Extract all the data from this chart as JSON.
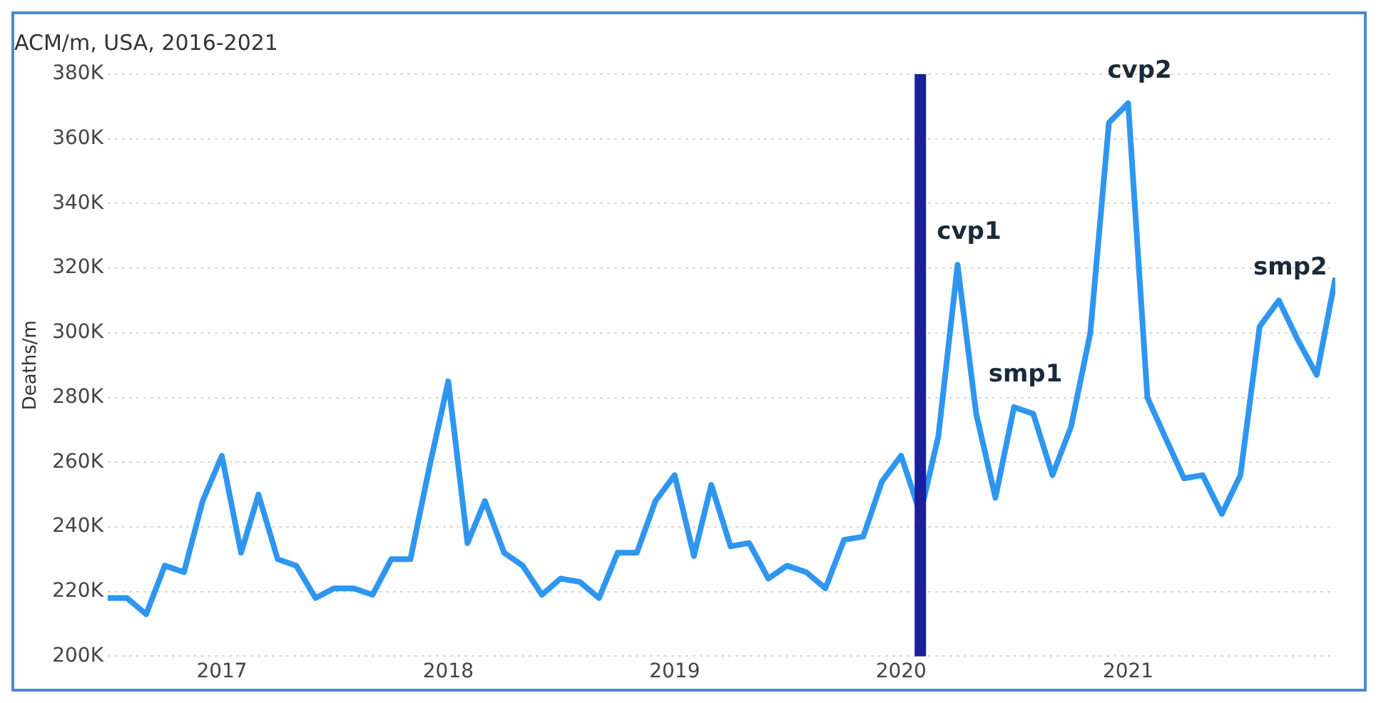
{
  "chart_data": {
    "type": "line",
    "title": "ACM/m, USA, 2016-2021",
    "ylabel": "Deaths/m",
    "x": [
      "2016-07",
      "2016-08",
      "2016-09",
      "2016-10",
      "2016-11",
      "2016-12",
      "2017-01",
      "2017-02",
      "2017-03",
      "2017-04",
      "2017-05",
      "2017-06",
      "2017-07",
      "2017-08",
      "2017-09",
      "2017-10",
      "2017-11",
      "2017-12",
      "2018-01",
      "2018-02",
      "2018-03",
      "2018-04",
      "2018-05",
      "2018-06",
      "2018-07",
      "2018-08",
      "2018-09",
      "2018-10",
      "2018-11",
      "2018-12",
      "2019-01",
      "2019-02",
      "2019-03",
      "2019-04",
      "2019-05",
      "2019-06",
      "2019-07",
      "2019-08",
      "2019-09",
      "2019-10",
      "2019-11",
      "2019-12",
      "2020-01",
      "2020-02",
      "2020-03",
      "2020-04",
      "2020-05",
      "2020-06",
      "2020-07",
      "2020-08",
      "2020-09",
      "2020-10",
      "2020-11",
      "2020-12",
      "2021-01",
      "2021-02",
      "2021-03",
      "2021-04",
      "2021-05",
      "2021-06",
      "2021-07",
      "2021-08",
      "2021-09",
      "2021-10",
      "2021-11",
      "2021-12"
    ],
    "series": [
      {
        "color": "#2f96f0",
        "values": [
          218000,
          218000,
          213000,
          228000,
          226000,
          248000,
          262000,
          232000,
          250000,
          230000,
          228000,
          218000,
          221000,
          221000,
          219000,
          230000,
          230000,
          258000,
          285000,
          235000,
          248000,
          232000,
          228000,
          219000,
          224000,
          223000,
          218000,
          232000,
          232000,
          248000,
          256000,
          231000,
          253000,
          234000,
          235000,
          224000,
          228000,
          226000,
          221000,
          236000,
          237000,
          254000,
          262000,
          244000,
          268000,
          321000,
          275000,
          249000,
          277000,
          275000,
          256000,
          271000,
          300000,
          365000,
          371000,
          280000,
          268000,
          255000,
          256000,
          244000,
          256000,
          302000,
          310000,
          298000,
          287000,
          317000
        ]
      }
    ],
    "xlim": [
      "2016-07",
      "2021-12"
    ],
    "xticks": [
      "2017",
      "2018",
      "2019",
      "2020",
      "2021"
    ],
    "ylim": [
      200000,
      380000
    ],
    "yticks": [
      {
        "value": 200000,
        "label": "200K"
      },
      {
        "value": 220000,
        "label": "220K"
      },
      {
        "value": 240000,
        "label": "240K"
      },
      {
        "value": 260000,
        "label": "260K"
      },
      {
        "value": 280000,
        "label": "280K"
      },
      {
        "value": 300000,
        "label": "300K"
      },
      {
        "value": 320000,
        "label": "320K"
      },
      {
        "value": 340000,
        "label": "340K"
      },
      {
        "value": 360000,
        "label": "360K"
      },
      {
        "value": 380000,
        "label": "380K"
      }
    ],
    "ref_lines": [
      {
        "axis": "x",
        "value": "2020-02",
        "color": "#1a1f9c"
      }
    ],
    "annotations": [
      {
        "text": "cvp1",
        "x": "2020-04",
        "y": 321000
      },
      {
        "text": "smp1",
        "x": "2020-07",
        "y": 277000
      },
      {
        "text": "cvp2",
        "x": "2021-01",
        "y": 371000
      },
      {
        "text": "smp2",
        "x": "2021-09",
        "y": 310000
      }
    ],
    "grid": "y",
    "legend": false,
    "marker": "none",
    "line_style": "solid"
  }
}
